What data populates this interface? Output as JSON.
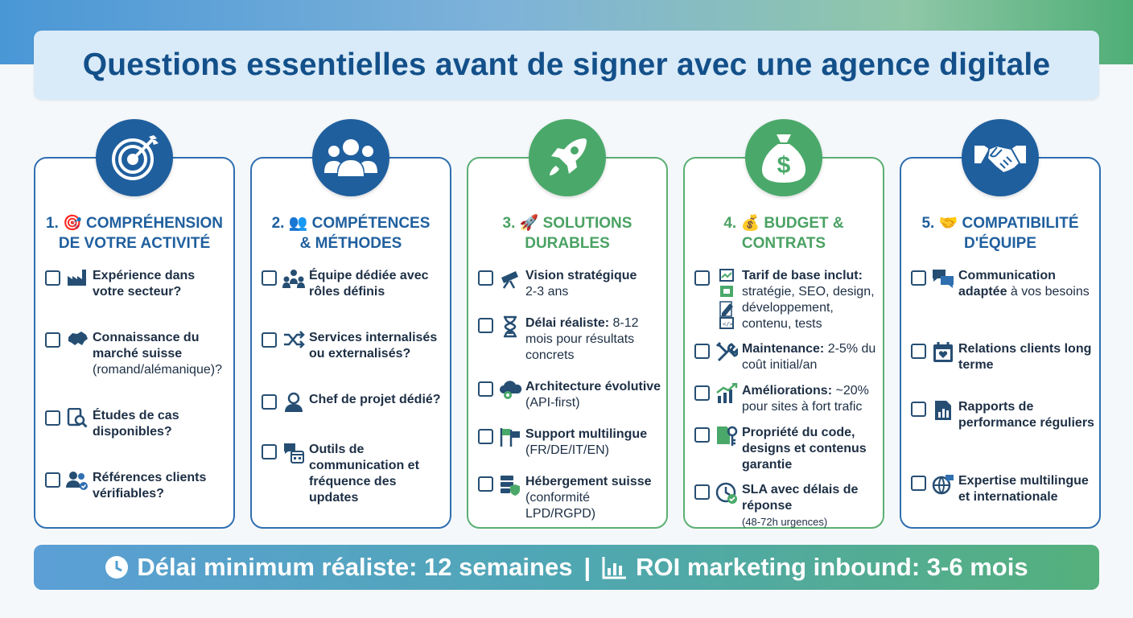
{
  "title": "Questions essentielles avant de signer avec une agence digitale",
  "colors": {
    "blue": "#1f5f9e",
    "green": "#4aa96a",
    "text": "#1d2f45"
  },
  "cards": [
    {
      "title_line1": "1. 🎯 COMPRÉHENSION",
      "title_line2": "DE VOTRE ACTIVITÉ",
      "icon": "target-icon",
      "items": [
        {
          "text": "Expérience dans votre secteur?",
          "icon": "factory-icon"
        },
        {
          "text": "Connaissance du marché suisse",
          "sub": "(romand/alémanique)?",
          "icon": "switzerland-map-icon"
        },
        {
          "text": "Études de cas disponibles?",
          "icon": "document-search-icon"
        },
        {
          "text": "Références clients vérifiables?",
          "icon": "users-check-icon"
        }
      ]
    },
    {
      "title_line1": "2. 👥 COMPÉTENCES",
      "title_line2": "& MÉTHODES",
      "icon": "team-icon",
      "items": [
        {
          "text": "Équipe dédiée avec rôles définis",
          "icon": "team-roles-icon"
        },
        {
          "text": "Services internalisés ou externalisés?",
          "icon": "shuffle-icon"
        },
        {
          "text": "Chef de projet dédié?",
          "icon": "user-icon"
        },
        {
          "text": "Outils de communication et fréquence des updates",
          "icon": "chat-calendar-icon"
        }
      ]
    },
    {
      "title_line1": "3. 🚀 SOLUTIONS",
      "title_line2": "DURABLES",
      "icon": "rocket-icon",
      "items": [
        {
          "text": "Vision stratégique",
          "sub": "2-3 ans",
          "icon": "telescope-icon"
        },
        {
          "text": "Délai réaliste:",
          "sub": "8-12 mois pour résultats concrets",
          "icon": "hourglass-icon"
        },
        {
          "text": "Architecture évolutive",
          "sub": "(API-first)",
          "icon": "cloud-gear-icon"
        },
        {
          "text": "Support multilingue",
          "sub": "(FR/DE/IT/EN)",
          "icon": "flags-icon"
        },
        {
          "text": "Hébergement suisse",
          "sub": "(conformité LPD/RGPD)",
          "icon": "server-shield-icon"
        }
      ]
    },
    {
      "title_line1": "4. 💰 BUDGET &",
      "title_line2": "CONTRATS",
      "icon": "money-bag-icon",
      "items": [
        {
          "text": "Tarif de base inclut:",
          "sub": "stratégie, SEO, design, développement, contenu, tests",
          "icon": "checklist-icons"
        },
        {
          "text": "Maintenance:",
          "sub": "2-5% du coût initial/an",
          "icon": "tools-icon"
        },
        {
          "text": "Améliorations:",
          "sub": "~20% pour sites à fort trafic",
          "icon": "growth-chart-icon"
        },
        {
          "text": "Propriété du code, designs et contenus garantie",
          "icon": "document-key-icon"
        },
        {
          "text": "SLA avec délais de réponse",
          "sub": "(48-72h urgences)",
          "icon": "clock-check-icon"
        }
      ]
    },
    {
      "title_line1": "5. 🤝 COMPATIBILITÉ",
      "title_line2": "D'ÉQUIPE",
      "icon": "handshake-icon",
      "items": [
        {
          "text": "Communication adaptée",
          "sub": "à vos besoins",
          "icon": "chat-bubbles-icon"
        },
        {
          "text": "Relations clients long terme",
          "icon": "calendar-heart-icon"
        },
        {
          "text": "Rapports de performance réguliers",
          "icon": "report-icon"
        },
        {
          "text": "Expertise multilingue et internationale",
          "icon": "globe-chat-icon"
        }
      ]
    }
  ],
  "footer": {
    "left": "Délai minimum réaliste: 12 semaines",
    "separator": "|",
    "right": "ROI marketing inbound: 3-6 mois",
    "left_icon": "clock-icon",
    "right_icon": "bar-chart-icon"
  }
}
